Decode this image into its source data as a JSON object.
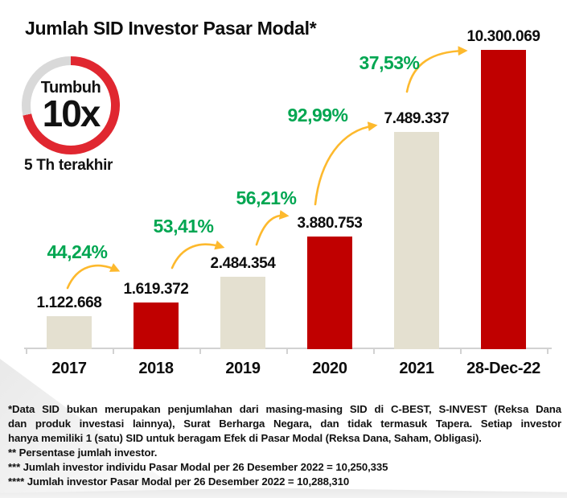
{
  "title": "Jumlah SID Investor Pasar Modal*",
  "badge": {
    "top_label": "Tumbuh",
    "big_label": "10x",
    "caption": "5 Th terakhir"
  },
  "chart_data": {
    "type": "bar",
    "title": "Jumlah SID Investor Pasar Modal*",
    "categories": [
      "2017",
      "2018",
      "2019",
      "2020",
      "2021",
      "28-Dec-22"
    ],
    "values": [
      1122668,
      1619372,
      2484354,
      3880753,
      7489337,
      10300069
    ],
    "value_labels": [
      "1.122.668",
      "1.619.372",
      "2.484.354",
      "3.880.753",
      "7.489.337",
      "10.300.069"
    ],
    "growth_labels": [
      "44,24%",
      "53,41%",
      "56,21%",
      "92,99%",
      "37,53%"
    ],
    "bar_colors": [
      "#E4E0D0",
      "#C00000",
      "#E4E0D0",
      "#C00000",
      "#E4E0D0",
      "#C00000"
    ],
    "xlabel": "",
    "ylabel": "",
    "ylim": [
      0,
      10300069
    ],
    "grid": false,
    "legend": false,
    "annotations": "yellow curved growth arrows between consecutive bars; donut badge notes 10x growth in last 5 years"
  },
  "colors": {
    "bar_red": "#C00000",
    "bar_beige": "#E4E0D0",
    "growth_green": "#00A651",
    "arrow_yellow": "#FDB92D",
    "donut_red": "#E02730",
    "donut_gray": "#D9D9D9",
    "axis_gray": "#D2D2D2"
  },
  "footnotes": {
    "lines": [
      "*Data SID bukan merupakan penjumlahan dari masing-masing SID di C-BEST, S-INVEST (Reksa Dana",
      "dan produk investasi lainnya), Surat Berharga Negara, dan tidak termasuk Tapera. Setiap investor",
      "hanya memiliki 1 (satu) SID untuk beragam Efek di Pasar Modal (Reksa Dana, Saham, Obligasi).",
      "** Persentase jumlah investor.",
      "*** Jumlah investor individu Pasar Modal per 26 Desember 2022 = 10,250,335",
      "**** Jumlah investor Pasar Modal per 26 Desember 2022 = 10,288,310"
    ]
  }
}
